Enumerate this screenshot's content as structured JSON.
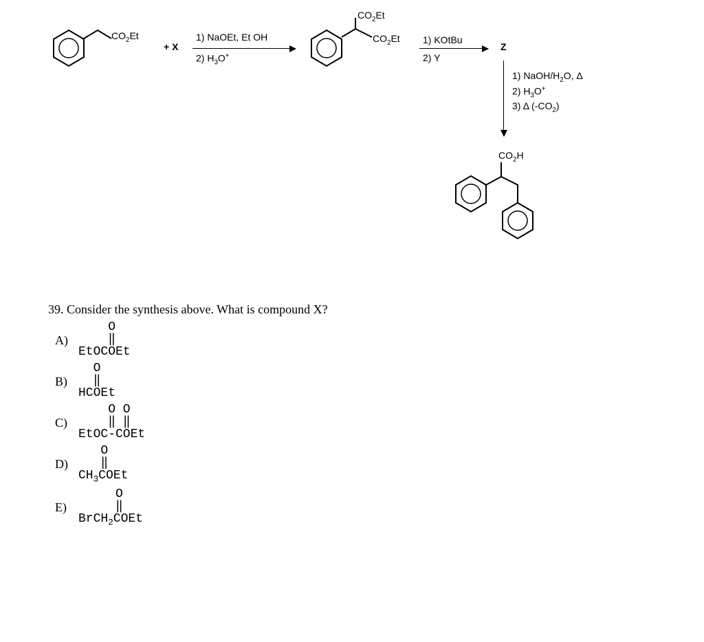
{
  "scheme": {
    "start_label": "CO₂Et",
    "reagent_x": "+ X",
    "step1_cond_top": "1) NaOEt, Et OH",
    "step1_cond_bot": "2) H₃O⁺",
    "intermediate_top": "CO₂Et",
    "intermediate_right": "CO₂Et",
    "step2_cond_top": "1) KOtBu",
    "step2_cond_bot": "2) Y",
    "z_label": "Z",
    "step3_cond_1": "1) NaOH/H₂O, Δ",
    "step3_cond_2": "2) H₃O⁺",
    "step3_cond_3": "3) Δ (-CO₂)",
    "product_top": "CO₂H",
    "colors": {
      "line": "#000000",
      "text": "#000000",
      "bg": "#ffffff"
    }
  },
  "question": {
    "number": "39.",
    "text": "Consider the synthesis above. What is compound X?"
  },
  "choices": {
    "A": {
      "label": "A)",
      "line1": "    O",
      "line2": "    ‖",
      "line3": "EtOCOEt"
    },
    "B": {
      "label": "B)",
      "line1": "  O",
      "line2": "  ‖",
      "line3": "HCOEt"
    },
    "C": {
      "label": "C)",
      "line1": "    O O",
      "line2": "    ‖ ‖",
      "line3": "EtOC-COEt"
    },
    "D": {
      "label": "D)",
      "line1": "   O",
      "line2": "   ‖",
      "line3": "CH₃COEt"
    },
    "E": {
      "label": "E)",
      "line1": "     O",
      "line2": "     ‖",
      "line3": "BrCH₂COEt"
    }
  }
}
